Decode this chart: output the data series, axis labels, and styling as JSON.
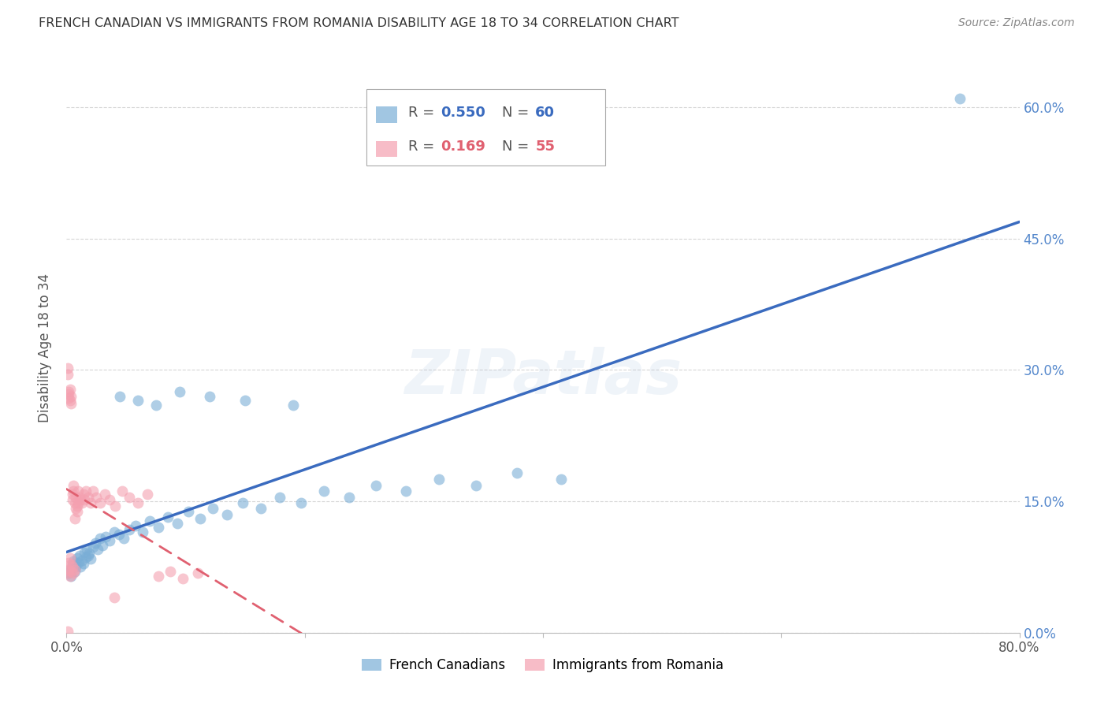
{
  "title": "FRENCH CANADIAN VS IMMIGRANTS FROM ROMANIA DISABILITY AGE 18 TO 34 CORRELATION CHART",
  "source": "Source: ZipAtlas.com",
  "ylabel": "Disability Age 18 to 34",
  "xlim": [
    0.0,
    0.8
  ],
  "ylim": [
    0.0,
    0.65
  ],
  "yticks": [
    0.0,
    0.15,
    0.3,
    0.45,
    0.6
  ],
  "ytick_labels": [
    "0.0%",
    "15.0%",
    "30.0%",
    "45.0%",
    "60.0%"
  ],
  "xticks": [
    0.0,
    0.2,
    0.4,
    0.6,
    0.8
  ],
  "xtick_labels": [
    "0.0%",
    "",
    "",
    "",
    "80.0%"
  ],
  "watermark": "ZIPatlas",
  "series1_label": "French Canadians",
  "series1_color": "#7aaed6",
  "series1_R": "0.550",
  "series1_N": "60",
  "series2_label": "Immigrants from Romania",
  "series2_color": "#f4a0b0",
  "series2_R": "0.169",
  "series2_N": "55",
  "blue_line_color": "#3a6bbf",
  "pink_line_color": "#e06070",
  "background_color": "#ffffff",
  "grid_color": "#cccccc",
  "title_color": "#333333",
  "right_axis_label_color": "#5588cc",
  "french_canadian_x": [
    0.002,
    0.003,
    0.004,
    0.005,
    0.006,
    0.007,
    0.008,
    0.009,
    0.01,
    0.011,
    0.012,
    0.013,
    0.014,
    0.015,
    0.016,
    0.017,
    0.018,
    0.019,
    0.02,
    0.022,
    0.024,
    0.026,
    0.028,
    0.03,
    0.033,
    0.036,
    0.04,
    0.044,
    0.048,
    0.053,
    0.058,
    0.064,
    0.07,
    0.077,
    0.085,
    0.093,
    0.102,
    0.112,
    0.123,
    0.135,
    0.148,
    0.163,
    0.179,
    0.197,
    0.216,
    0.237,
    0.26,
    0.285,
    0.313,
    0.344,
    0.378,
    0.415,
    0.045,
    0.06,
    0.075,
    0.095,
    0.12,
    0.15,
    0.19,
    0.75
  ],
  "french_canadian_y": [
    0.068,
    0.072,
    0.065,
    0.078,
    0.082,
    0.07,
    0.075,
    0.085,
    0.08,
    0.088,
    0.075,
    0.083,
    0.079,
    0.092,
    0.086,
    0.095,
    0.088,
    0.091,
    0.084,
    0.098,
    0.102,
    0.095,
    0.108,
    0.1,
    0.11,
    0.105,
    0.115,
    0.112,
    0.108,
    0.118,
    0.122,
    0.115,
    0.128,
    0.12,
    0.132,
    0.125,
    0.138,
    0.13,
    0.142,
    0.135,
    0.148,
    0.142,
    0.155,
    0.148,
    0.162,
    0.155,
    0.168,
    0.162,
    0.175,
    0.168,
    0.182,
    0.175,
    0.27,
    0.265,
    0.26,
    0.275,
    0.27,
    0.265,
    0.26,
    0.61
  ],
  "romania_x": [
    0.001,
    0.001,
    0.001,
    0.002,
    0.002,
    0.002,
    0.003,
    0.003,
    0.004,
    0.004,
    0.005,
    0.005,
    0.006,
    0.006,
    0.007,
    0.007,
    0.008,
    0.008,
    0.009,
    0.009,
    0.01,
    0.01,
    0.011,
    0.012,
    0.013,
    0.014,
    0.015,
    0.016,
    0.018,
    0.02,
    0.022,
    0.025,
    0.028,
    0.032,
    0.036,
    0.041,
    0.047,
    0.053,
    0.06,
    0.068,
    0.077,
    0.087,
    0.098,
    0.11,
    0.001,
    0.002,
    0.002,
    0.003,
    0.003,
    0.004,
    0.004,
    0.005,
    0.006,
    0.007,
    0.04
  ],
  "romania_y": [
    0.068,
    0.295,
    0.302,
    0.072,
    0.08,
    0.275,
    0.065,
    0.085,
    0.07,
    0.078,
    0.152,
    0.158,
    0.168,
    0.162,
    0.13,
    0.148,
    0.155,
    0.142,
    0.145,
    0.138,
    0.162,
    0.148,
    0.155,
    0.152,
    0.148,
    0.158,
    0.152,
    0.162,
    0.155,
    0.148,
    0.162,
    0.155,
    0.148,
    0.158,
    0.152,
    0.145,
    0.162,
    0.155,
    0.148,
    0.158,
    0.065,
    0.07,
    0.062,
    0.068,
    0.002,
    0.268,
    0.272,
    0.265,
    0.278,
    0.27,
    0.262,
    0.075,
    0.068,
    0.072,
    0.04
  ]
}
